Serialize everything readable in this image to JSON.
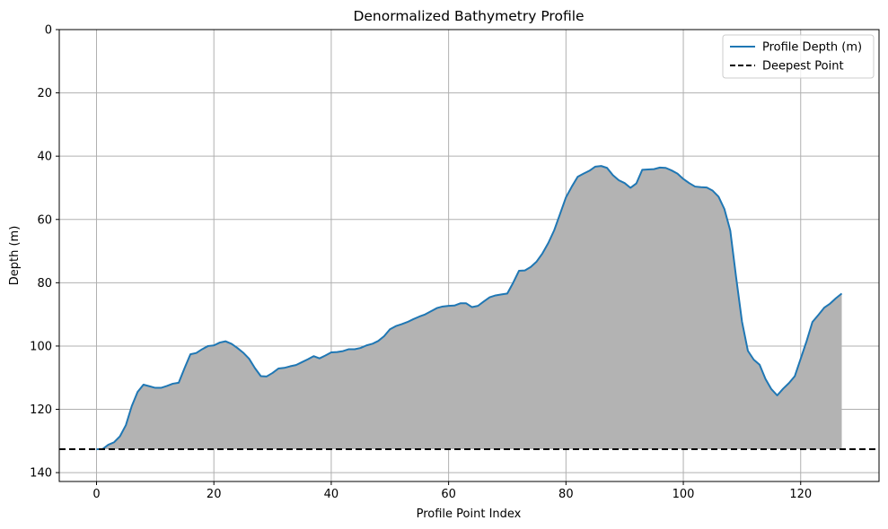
{
  "chart_data": {
    "type": "area",
    "title": "Denormalized Bathymetry Profile",
    "xlabel": "Profile Point Index",
    "ylabel": "Depth (m)",
    "xlim": [
      -6.35,
      133.35
    ],
    "ylim": [
      142.8,
      0
    ],
    "y_inverted": true,
    "grid": true,
    "legend_position": "top-right",
    "xticks": [
      0,
      20,
      40,
      60,
      80,
      100,
      120
    ],
    "yticks": [
      0,
      20,
      40,
      60,
      80,
      100,
      120,
      140
    ],
    "colors": {
      "line": "#1f77b4",
      "fill": "#b3b3b3",
      "deepest": "#000000",
      "grid": "#b0b0b0"
    },
    "series": [
      {
        "name": "Profile Depth (m)",
        "style": "solid",
        "x": [
          0,
          1,
          2,
          3,
          4,
          5,
          6,
          7,
          8,
          9,
          10,
          11,
          12,
          13,
          14,
          15,
          16,
          17,
          18,
          19,
          20,
          21,
          22,
          23,
          24,
          25,
          26,
          27,
          28,
          29,
          30,
          31,
          32,
          33,
          34,
          35,
          36,
          37,
          38,
          39,
          40,
          41,
          42,
          43,
          44,
          45,
          46,
          47,
          48,
          49,
          50,
          51,
          52,
          53,
          54,
          55,
          56,
          57,
          58,
          59,
          60,
          61,
          62,
          63,
          64,
          65,
          66,
          67,
          68,
          69,
          70,
          71,
          72,
          73,
          74,
          75,
          76,
          77,
          78,
          79,
          80,
          81,
          82,
          83,
          84,
          85,
          86,
          87,
          88,
          89,
          90,
          91,
          92,
          93,
          94,
          95,
          96,
          97,
          98,
          99,
          100,
          101,
          102,
          103,
          104,
          105,
          106,
          107,
          108,
          109,
          110,
          111,
          112,
          113,
          114,
          115,
          116,
          117,
          118,
          119,
          120,
          121,
          122,
          123,
          124,
          125,
          126,
          127
        ],
        "y": [
          132.6,
          132.6,
          131.2,
          130.4,
          128.5,
          125.0,
          119.0,
          114.5,
          112.2,
          112.7,
          113.2,
          113.2,
          112.6,
          111.9,
          111.6,
          107.0,
          102.6,
          102.2,
          101.0,
          100.0,
          99.8,
          98.9,
          98.5,
          99.3,
          100.6,
          102.1,
          104.0,
          107.0,
          109.5,
          109.6,
          108.5,
          107.1,
          106.9,
          106.4,
          106.0,
          105.1,
          104.2,
          103.2,
          103.9,
          103.0,
          102.0,
          101.9,
          101.6,
          101.0,
          101.0,
          100.6,
          99.8,
          99.3,
          98.4,
          96.9,
          94.7,
          93.7,
          93.1,
          92.4,
          91.5,
          90.7,
          90.0,
          89.0,
          88.0,
          87.5,
          87.3,
          87.2,
          86.5,
          86.5,
          87.7,
          87.3,
          85.9,
          84.6,
          84.0,
          83.7,
          83.4,
          80.0,
          76.2,
          76.1,
          75.0,
          73.3,
          70.7,
          67.4,
          63.4,
          58.2,
          53.0,
          49.6,
          46.5,
          45.5,
          44.6,
          43.3,
          43.1,
          43.7,
          46.0,
          47.6,
          48.5,
          50.0,
          48.6,
          44.3,
          44.2,
          44.1,
          43.6,
          43.7,
          44.5,
          45.5,
          47.2,
          48.5,
          49.6,
          49.8,
          49.9,
          50.9,
          52.8,
          56.7,
          63.5,
          78.3,
          92.3,
          101.5,
          104.3,
          105.9,
          110.4,
          113.6,
          115.6,
          113.5,
          111.7,
          109.5,
          104.0,
          98.5,
          92.4,
          90.2,
          87.9,
          86.6,
          84.9,
          83.4
        ]
      },
      {
        "name": "Deepest Point",
        "style": "dashed",
        "y_value": 132.6
      }
    ]
  }
}
